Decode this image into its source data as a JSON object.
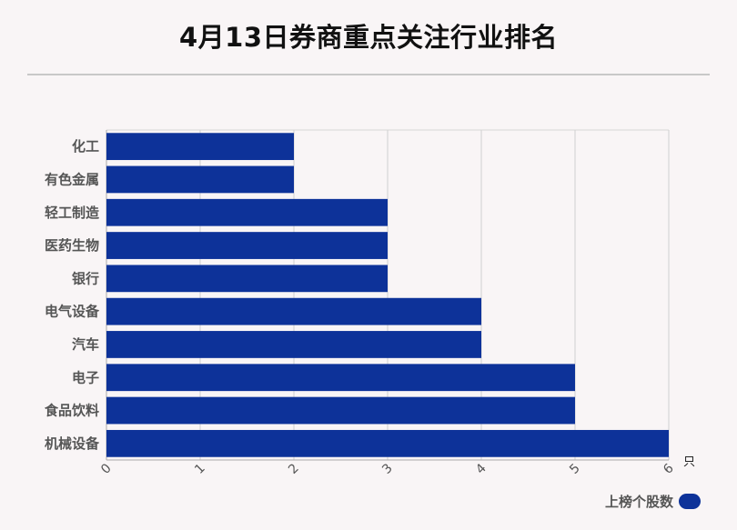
{
  "title": "4月13日券商重点关注行业排名",
  "chart_data": {
    "type": "bar",
    "orientation": "horizontal",
    "categories": [
      "化工",
      "有色金属",
      "轻工制造",
      "医药生物",
      "银行",
      "电气设备",
      "汽车",
      "电子",
      "食品饮料",
      "机械设备"
    ],
    "series": [
      {
        "name": "上榜个股数",
        "values": [
          2,
          2,
          3,
          3,
          3,
          4,
          4,
          5,
          5,
          6
        ]
      }
    ],
    "xlim": [
      0,
      6
    ],
    "xticks": [
      0,
      1,
      2,
      3,
      4,
      5,
      6
    ],
    "xunit": "只",
    "grid": true,
    "legend_position": "bottom-right",
    "bar_color": "#0d3299"
  }
}
